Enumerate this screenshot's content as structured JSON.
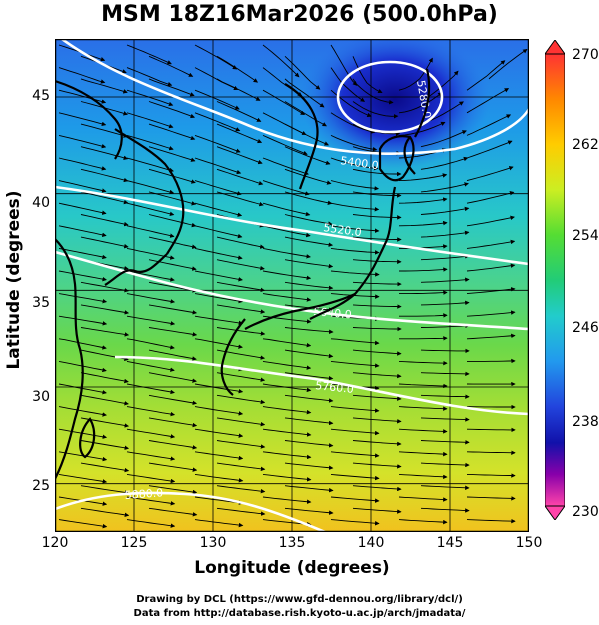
{
  "title": "MSM 18Z16Mar2026 (500.0hPa)",
  "axes": {
    "xlabel": "Longitude (degrees)",
    "ylabel": "Latitude  (degrees)",
    "xticks": [
      "120",
      "125",
      "130",
      "135",
      "140",
      "145",
      "150"
    ],
    "yticks": [
      "45",
      "40",
      "35",
      "30",
      "25"
    ]
  },
  "colorbar": {
    "ticks": [
      "270",
      "262",
      "254",
      "246",
      "238",
      "230"
    ],
    "colors": [
      "#ff3333",
      "#ff8800",
      "#ffcc00",
      "#ccee22",
      "#55dd33",
      "#22cc77",
      "#22cccc",
      "#2299ee",
      "#2244dd",
      "#1111aa",
      "#8800aa",
      "#ff44aa"
    ]
  },
  "contour_labels": [
    "5280.0",
    "5400.0",
    "5520.0",
    "5640.0",
    "5760.0",
    "5880.0"
  ],
  "credits": {
    "line1": "Drawing by DCL (https://www.gfd-dennou.org/library/dcl/)",
    "line2": "Data from http://database.rish.kyoto-u.ac.jp/arch/jmadata/"
  }
}
